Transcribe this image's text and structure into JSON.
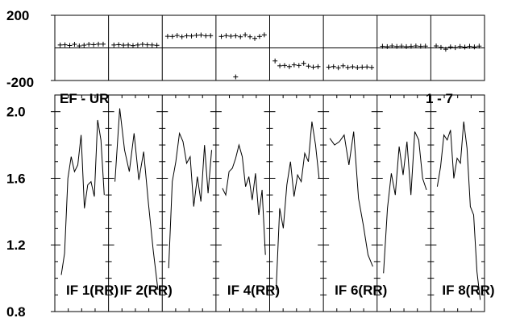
{
  "chart_data": [
    {
      "type": "scatter",
      "name": "phase-panel",
      "ylim": [
        -200,
        200
      ],
      "yticks": [
        "200",
        "-200"
      ],
      "points_per_panel": 10,
      "panels": [
        {
          "values": [
            18,
            19,
            15,
            22,
            12,
            17,
            22,
            20,
            23,
            23
          ]
        },
        {
          "values": [
            18,
            20,
            17,
            18,
            14,
            18,
            22,
            19,
            18,
            16
          ]
        },
        {
          "values": [
            71,
            70,
            76,
            68,
            74,
            73,
            77,
            79,
            74,
            75
          ]
        },
        {
          "values": [
            70,
            75,
            72,
            74,
            68,
            80,
            68,
            58,
            70,
            80
          ]
        },
        {
          "values": [
            -80,
            -110,
            -108,
            -115,
            -104,
            -108,
            -95,
            -112,
            -118,
            -115
          ]
        },
        {
          "values": [
            -118,
            -115,
            -122,
            -110,
            -120,
            -116,
            -121,
            -118,
            -117,
            -120
          ]
        },
        {
          "values": [
            10,
            8,
            12,
            9,
            11,
            8,
            10,
            12,
            10,
            11
          ]
        },
        {
          "values": [
            12,
            3,
            -8,
            6,
            2,
            9,
            5,
            10,
            6,
            11
          ]
        }
      ],
      "outliers": [
        {
          "panel": 3,
          "index": 3,
          "value": -178
        }
      ]
    },
    {
      "type": "line",
      "name": "amplitude-panel",
      "ylim": [
        0.8,
        2.1
      ],
      "yticks": [
        "2.0",
        "1.6",
        "1.2",
        "0.8"
      ],
      "title_left": "EF - UR",
      "title_right": "1 - 7",
      "panels": [
        {
          "label": "IF 1(RR)",
          "values": [
            1.02,
            1.15,
            1.6,
            1.73,
            1.64,
            1.68,
            1.86,
            1.42,
            1.56,
            1.58,
            1.49,
            1.95,
            1.83,
            1.5
          ]
        },
        {
          "label": "IF 2(RR)",
          "values": [
            1.58,
            2.02,
            1.77,
            1.64,
            1.87,
            1.59,
            1.76,
            1.45,
            1.17,
            0.93
          ]
        },
        {
          "label": "",
          "values": [
            1.06,
            1.58,
            1.7,
            1.87,
            1.82,
            1.69,
            1.73,
            1.43,
            1.61,
            1.46,
            1.8,
            1.51,
            1.77
          ]
        },
        {
          "label": "IF 4(RR)",
          "values": [
            1.54,
            1.5,
            1.64,
            1.66,
            1.72,
            1.8,
            1.73,
            1.55,
            1.61,
            1.47,
            1.63,
            1.38,
            1.53,
            1.14
          ]
        },
        {
          "label": "",
          "values": [
            0.93,
            1.42,
            1.3,
            1.56,
            1.7,
            1.49,
            1.62,
            1.58,
            1.75,
            1.7,
            1.94,
            1.8,
            1.6
          ]
        },
        {
          "label": "IF 6(RR)",
          "values": [
            1.84,
            1.8,
            1.82,
            1.86,
            1.68,
            1.88,
            1.48,
            1.32,
            1.14,
            1.07
          ]
        },
        {
          "label": "",
          "values": [
            1.03,
            1.42,
            1.63,
            1.5,
            1.79,
            1.62,
            1.82,
            1.5,
            1.88,
            1.83,
            1.6,
            1.53
          ]
        },
        {
          "label": "IF 8(RR)",
          "values": [
            1.55,
            1.67,
            1.86,
            1.83,
            1.89,
            1.6,
            1.72,
            1.69,
            1.94,
            1.78,
            1.43,
            1.38,
            1.04,
            0.87
          ]
        }
      ]
    }
  ]
}
